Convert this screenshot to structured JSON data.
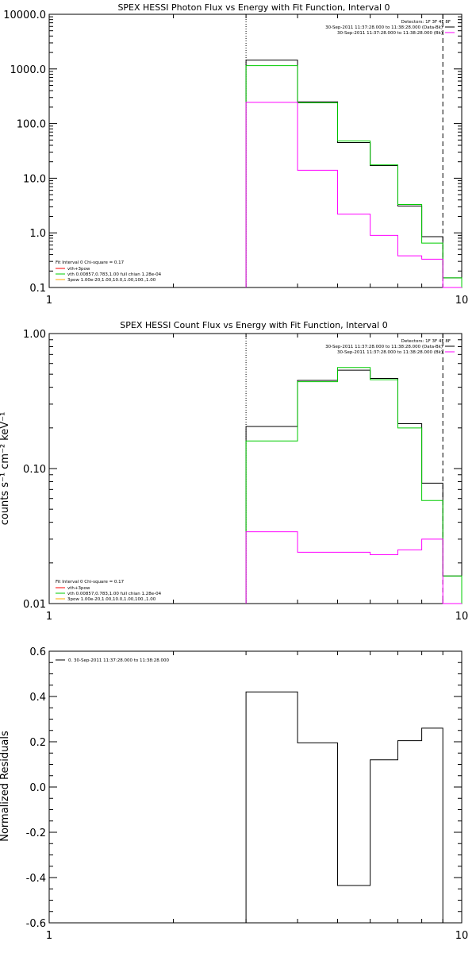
{
  "chart_data": [
    {
      "type": "line",
      "title": "SPEX HESSI Photon Flux vs Energy with Fit Function, Interval 0",
      "ylabel": "",
      "xlabel": "",
      "xscale": "log",
      "yscale": "log",
      "xlim": [
        1,
        10
      ],
      "ylim": [
        0.1,
        10000
      ],
      "xticks": [
        "1",
        "10"
      ],
      "yticks": [
        "0.1",
        "1.0",
        "10.0",
        "100.0",
        "1000.0",
        "10000.0"
      ],
      "ytick_values": [
        0.1,
        1,
        10,
        100,
        1000,
        10000
      ],
      "edges": [
        3,
        4,
        5,
        6,
        7,
        8,
        9,
        10
      ],
      "series": [
        {
          "color": "#000000",
          "values": [
            1450,
            250,
            45,
            17,
            3.1,
            0.85,
            0.15
          ]
        },
        {
          "color": "#00cc00",
          "values": [
            1150,
            240,
            48,
            17.5,
            3.3,
            0.65,
            0.15
          ]
        },
        {
          "color": "#ff00ff",
          "values": [
            245,
            14,
            2.2,
            0.9,
            0.38,
            0.33,
            0.1
          ]
        }
      ],
      "vlines": [
        {
          "x": 3,
          "style": "dotted"
        },
        {
          "x": 9,
          "style": "dashed"
        }
      ],
      "legend_tr": [
        "Detectors: 1F 3F 4F 8F",
        "30-Sep-2011 11:37:28.000 to 11:38:28.000 (Data-Bk)",
        "30-Sep-2011 11:37:28.000 to 11:38:28.000 (Bk)"
      ],
      "legend_tr_colors": [
        "",
        "#000000",
        "#ff00ff"
      ],
      "legend_bl": [
        "Fit Interval 0   Chi-square = 0.17",
        "vth+3pow",
        "vth 0.00857,0.783,1.00  full chian 1.28e-04",
        "3pow 1.00e-20,1.00,10.0,1.00,100.,1.00"
      ],
      "legend_bl_colors": [
        "",
        "#ff0000",
        "#00cc00",
        "#ffaa00"
      ]
    },
    {
      "type": "line",
      "title": "SPEX HESSI Count Flux vs Energy with Fit Function, Interval 0",
      "ylabel": "counts s⁻¹ cm⁻² keV⁻¹",
      "xlabel": "",
      "xscale": "log",
      "yscale": "log",
      "xlim": [
        1,
        10
      ],
      "ylim": [
        0.01,
        1
      ],
      "xticks": [
        "1",
        "10"
      ],
      "yticks": [
        "0.01",
        "0.10",
        "1.00"
      ],
      "ytick_values": [
        0.01,
        0.1,
        1
      ],
      "edges": [
        3,
        4,
        5,
        6,
        7,
        8,
        9,
        10
      ],
      "series": [
        {
          "color": "#000000",
          "values": [
            0.205,
            0.45,
            0.535,
            0.465,
            0.215,
            0.078,
            0.016
          ]
        },
        {
          "color": "#00cc00",
          "values": [
            0.16,
            0.44,
            0.56,
            0.455,
            0.2,
            0.058,
            0.016
          ]
        },
        {
          "color": "#ff00ff",
          "values": [
            0.034,
            0.024,
            0.024,
            0.023,
            0.025,
            0.03,
            0.01
          ]
        }
      ],
      "vlines": [
        {
          "x": 3,
          "style": "dotted"
        },
        {
          "x": 9,
          "style": "dashed"
        }
      ],
      "legend_tr": [
        "Detectors: 1F 3F 4F 8F",
        "30-Sep-2011 11:37:28.000 to 11:38:28.000 (Data-Bk)",
        "30-Sep-2011 11:37:28.000 to 11:38:28.000 (Bk)"
      ],
      "legend_tr_colors": [
        "",
        "#000000",
        "#ff00ff"
      ],
      "legend_bl": [
        "Fit Interval 0   Chi-square = 0.17",
        "vth+3pow",
        "vth 0.00857,0.783,1.00  full chian 1.28e-04",
        "3pow 1.00e-20,1.00,10.0,1.00,100.,1.00"
      ],
      "legend_bl_colors": [
        "",
        "#ff0000",
        "#00cc00",
        "#ffaa00"
      ]
    },
    {
      "type": "line",
      "title": "",
      "ylabel": "Normalized Residuals",
      "xlabel": "",
      "xscale": "log",
      "yscale": "linear",
      "xlim": [
        1,
        10
      ],
      "ylim": [
        -0.6,
        0.6
      ],
      "xticks": [
        "1",
        "10"
      ],
      "yticks": [
        "-0.6",
        "-0.4",
        "-0.2",
        "0.0",
        "0.2",
        "0.4",
        "0.6"
      ],
      "ytick_values": [
        -0.6,
        -0.4,
        -0.2,
        0,
        0.2,
        0.4,
        0.6
      ],
      "edges": [
        3,
        4,
        5,
        6,
        7,
        8,
        9
      ],
      "series": [
        {
          "color": "#000000",
          "values": [
            0.42,
            0.195,
            -0.435,
            0.12,
            0.205,
            0.26
          ]
        }
      ],
      "vlines": [],
      "legend_tl": [
        "0. 30-Sep-2011 11:37:28.000 to 11:38:28.000"
      ],
      "legend_tl_colors": [
        "#000000"
      ]
    }
  ]
}
